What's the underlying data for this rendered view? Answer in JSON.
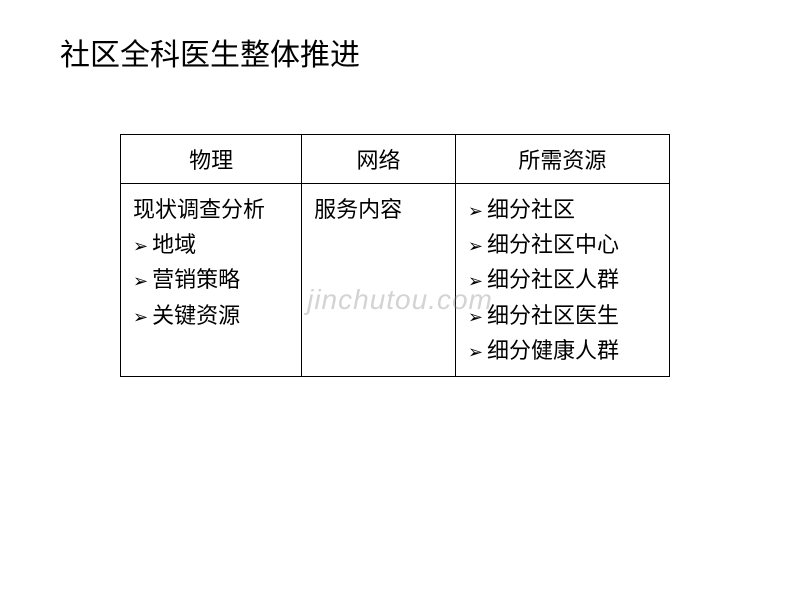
{
  "title": "社区全科医生整体推进",
  "watermark": "jinchutou.com",
  "table": {
    "headers": [
      "物理",
      "网络",
      "所需资源"
    ],
    "body": {
      "col1": {
        "plain": "现状调查分析",
        "bullets": [
          "地域",
          "营销策略",
          "关键资源"
        ]
      },
      "col2": {
        "plain": "服务内容",
        "bullets": []
      },
      "col3": {
        "plain": "",
        "bullets": [
          "细分社区",
          "细分社区中心",
          "细分社区人群",
          "细分社区医生",
          "细分健康人群"
        ]
      }
    }
  },
  "styling": {
    "background_color": "#ffffff",
    "text_color": "#000000",
    "border_color": "#000000",
    "title_fontsize": 30,
    "cell_fontsize": 22,
    "font_family": "SimSun"
  }
}
